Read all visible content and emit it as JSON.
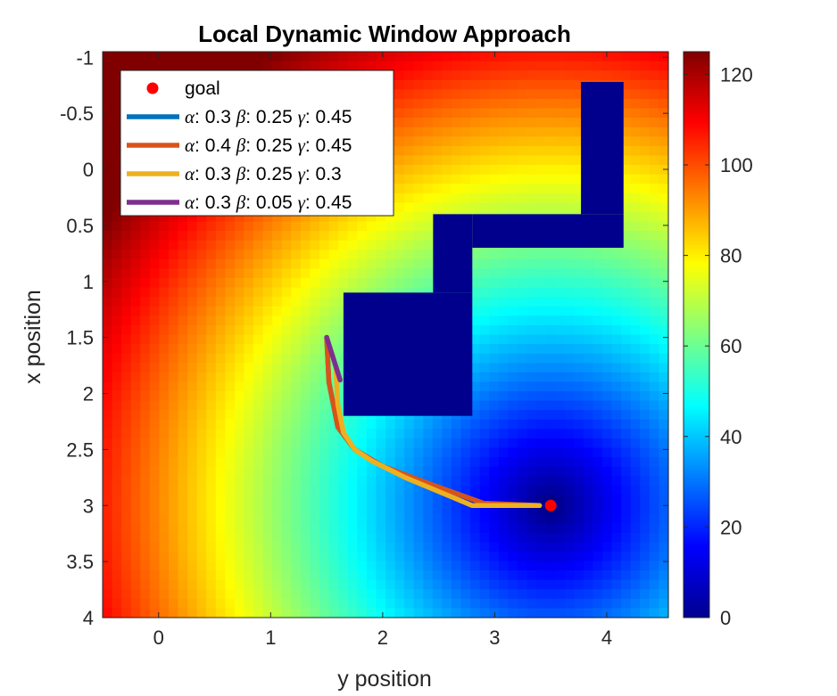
{
  "chart_data": {
    "type": "heatmap",
    "title": "Local Dynamic Window Approach",
    "xlabel": "y position",
    "ylabel": "x position",
    "xlim": [
      -0.5,
      4.55
    ],
    "ylim": [
      -1.05,
      4.0
    ],
    "y_reversed": true,
    "xticks": [
      "0",
      "1",
      "2",
      "3",
      "4"
    ],
    "yticks": [
      "-1",
      "-0.5",
      "0",
      "0.5",
      "1",
      "1.5",
      "2",
      "2.5",
      "3",
      "3.5",
      "4"
    ],
    "grid": false,
    "colormap": "jet",
    "colorbar": {
      "min": 0,
      "max": 125,
      "ticks": [
        "0",
        "20",
        "40",
        "60",
        "80",
        "100",
        "120"
      ]
    },
    "heat_field": {
      "center": [
        3.5,
        3.0
      ],
      "scale": 26.5
    },
    "obstacle_color": "#00008c",
    "obstacles": [
      {
        "x": [
          1.65,
          2.8
        ],
        "y": [
          1.1,
          2.2
        ]
      },
      {
        "x": [
          2.45,
          2.8
        ],
        "y": [
          0.4,
          1.1
        ]
      },
      {
        "x": [
          2.8,
          4.15
        ],
        "y": [
          0.4,
          0.7
        ]
      },
      {
        "x": [
          3.77,
          4.15
        ],
        "y": [
          -0.78,
          0.4
        ]
      }
    ],
    "goal": {
      "label": "goal",
      "x": 3.5,
      "y": 3.0,
      "color": "#ff0000"
    },
    "legend_position": "top-left",
    "series": [
      {
        "name": "α: 0.3 β: 0.25 γ: 0.45",
        "name_parts": [
          "α",
          ": 0.3 ",
          "β",
          ": 0.25 ",
          "γ",
          ": 0.45"
        ],
        "color": "#0072bd",
        "x": [
          1.5,
          1.52,
          1.6,
          1.75,
          2.0,
          2.4,
          2.9,
          3.4
        ],
        "y": [
          1.5,
          1.9,
          2.3,
          2.5,
          2.65,
          2.8,
          2.98,
          3.0
        ]
      },
      {
        "name": "α: 0.4 β: 0.25 γ: 0.45",
        "name_parts": [
          "α",
          ": 0.4 ",
          "β",
          ": 0.25 ",
          "γ",
          ": 0.45"
        ],
        "color": "#d95319",
        "x": [
          1.5,
          1.52,
          1.6,
          1.75,
          2.0,
          2.4,
          2.9,
          3.4
        ],
        "y": [
          1.5,
          1.9,
          2.3,
          2.5,
          2.65,
          2.8,
          2.98,
          3.0
        ]
      },
      {
        "name": "α: 0.3 β: 0.25 γ:  0.3",
        "name_parts": [
          "α",
          ": 0.3 ",
          "β",
          ": 0.25 ",
          "γ",
          ":  0.3"
        ],
        "color": "#edb120",
        "x": [
          1.58,
          1.6,
          1.65,
          1.75,
          1.9,
          2.2,
          2.8,
          3.4
        ],
        "y": [
          1.75,
          2.1,
          2.35,
          2.5,
          2.6,
          2.75,
          3.0,
          3.0
        ]
      },
      {
        "name": "α: 0.3 β: 0.05 γ: 0.45",
        "name_parts": [
          "α",
          ": 0.3 ",
          "β",
          ": 0.05 ",
          "γ",
          ": 0.45"
        ],
        "color": "#7e2f8e",
        "x": [
          1.5,
          1.62
        ],
        "y": [
          1.5,
          1.88
        ]
      }
    ]
  }
}
